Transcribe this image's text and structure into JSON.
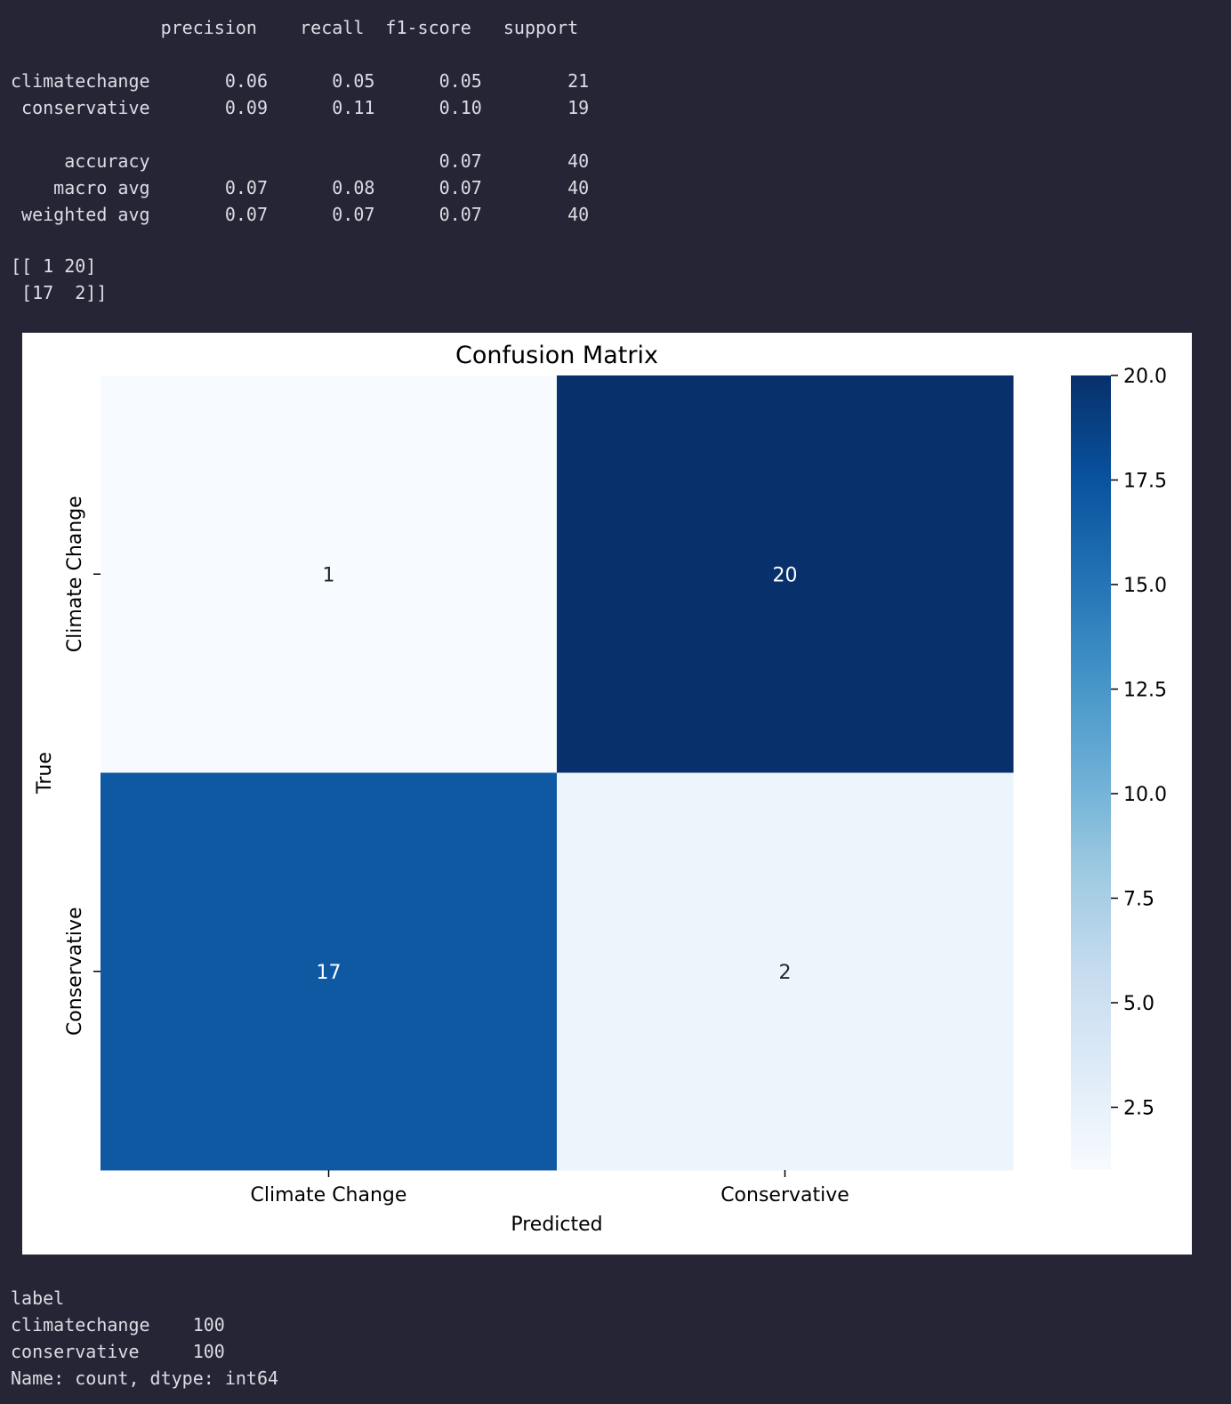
{
  "report": {
    "header_line": "              precision    recall  f1-score   support",
    "lines": [
      "climatechange       0.06      0.05      0.05        21",
      " conservative       0.09      0.11      0.10        19",
      "     accuracy                           0.07        40",
      "    macro avg       0.07      0.08      0.07        40",
      " weighted avg       0.07      0.07      0.07        40"
    ]
  },
  "matrix_print": {
    "lines": [
      "[[ 1 20]",
      " [17  2]]"
    ]
  },
  "counts_output": {
    "lines": [
      "label",
      "climatechange    100",
      "conservative     100",
      "Name: count, dtype: int64"
    ]
  },
  "chart_data": {
    "type": "heatmap",
    "title": "Confusion Matrix",
    "xlabel": "Predicted",
    "ylabel": "True",
    "x_categories": [
      "Climate Change",
      "Conservative"
    ],
    "y_categories": [
      "Climate Change",
      "Conservative"
    ],
    "values": [
      [
        1,
        20
      ],
      [
        17,
        2
      ]
    ],
    "colormap": "Blues",
    "colorbar": {
      "min": 1,
      "max": 20,
      "ticks": [
        2.5,
        5.0,
        7.5,
        10.0,
        12.5,
        15.0,
        17.5,
        20.0
      ],
      "tick_labels": [
        "2.5",
        "5.0",
        "7.5",
        "10.0",
        "12.5",
        "15.0",
        "17.5",
        "20.0"
      ]
    }
  },
  "colors": {
    "background": "#262536",
    "text": "#dcdce4",
    "figure_background": "#ffffff",
    "cmap_stops": [
      "#f7fbff",
      "#deebf7",
      "#c6dbef",
      "#9ecae1",
      "#6baed6",
      "#4292c6",
      "#2171b5",
      "#08519c",
      "#08306b"
    ]
  }
}
